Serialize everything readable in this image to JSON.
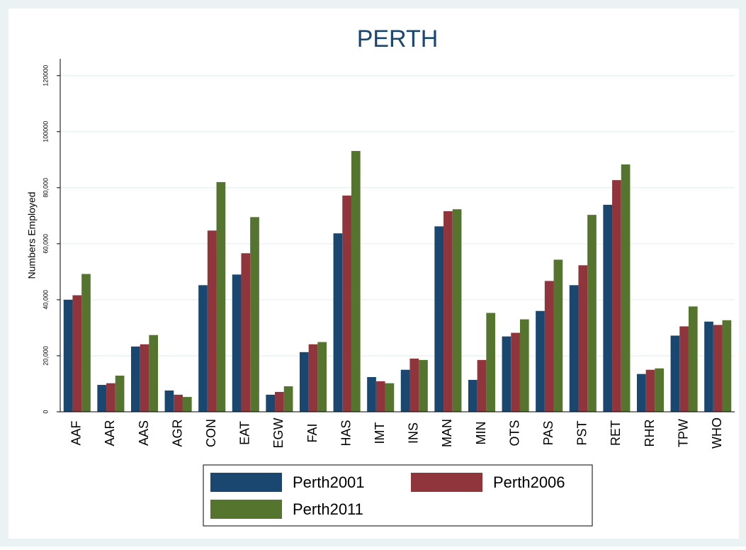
{
  "chart_data": {
    "type": "bar",
    "title": "PERTH",
    "y_label": "Numbers Employed",
    "categories": [
      "AAF",
      "AAR",
      "AAS",
      "AGR",
      "CON",
      "EAT",
      "EGW",
      "FAI",
      "HAS",
      "IMT",
      "INS",
      "MAN",
      "MIN",
      "OTS",
      "PAS",
      "PST",
      "RET",
      "RHR",
      "TPW",
      "WHO"
    ],
    "series": [
      {
        "name": "Perth2001",
        "color": "#1a476f",
        "values": [
          40000,
          9600,
          23300,
          7600,
          45200,
          49000,
          6100,
          21300,
          63700,
          12400,
          15000,
          66200,
          11400,
          26900,
          36000,
          45200,
          73900,
          13500,
          27200,
          32200
        ]
      },
      {
        "name": "Perth2006",
        "color": "#90353b",
        "values": [
          41600,
          10200,
          24100,
          6100,
          64700,
          56600,
          7100,
          24100,
          77200,
          10900,
          19000,
          71600,
          18500,
          28200,
          46700,
          52300,
          82700,
          15000,
          30500,
          31000
        ]
      },
      {
        "name": "Perth2011",
        "color": "#55752f",
        "values": [
          49200,
          12900,
          27400,
          5300,
          82000,
          69500,
          9100,
          24900,
          93100,
          10200,
          18500,
          72300,
          35300,
          33000,
          54300,
          70300,
          88300,
          15500,
          37600,
          32700
        ]
      }
    ],
    "ylim": [
      0,
      126000
    ],
    "yticks": [
      0,
      {
        "value": 20000,
        "label": "20,000"
      },
      {
        "value": 40000,
        "label": "40,000"
      },
      {
        "value": 60000,
        "label": "60,000"
      },
      {
        "value": 80000,
        "label": "80,000"
      },
      {
        "value": 100000,
        "label": "100000"
      },
      {
        "value": 120000,
        "label": "120000"
      }
    ],
    "grid": true,
    "legend": "bottom"
  }
}
